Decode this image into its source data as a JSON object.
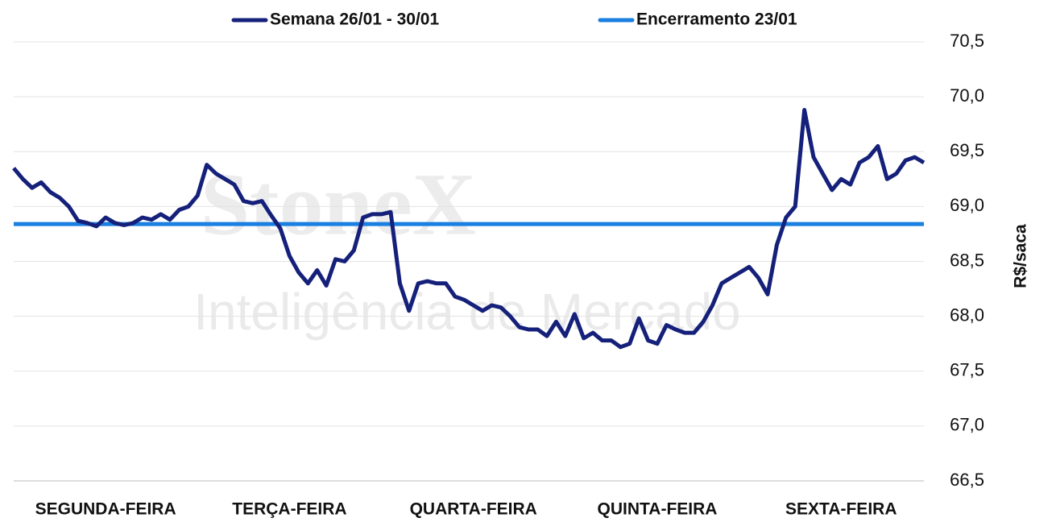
{
  "chart_data": {
    "type": "line",
    "watermark": {
      "brand": "StoneX",
      "tagline": "Inteligência de Mercado"
    },
    "y_label": "R$/saca",
    "categories": [
      null,
      null,
      null,
      null,
      null,
      null,
      null,
      null,
      null,
      null,
      "SEGUNDA-FEIRA",
      null,
      null,
      null,
      null,
      null,
      null,
      null,
      null,
      null,
      null,
      null,
      null,
      null,
      null,
      null,
      null,
      null,
      null,
      null,
      "TERÇA-FEIRA",
      null,
      null,
      null,
      null,
      null,
      null,
      null,
      null,
      null,
      null,
      null,
      null,
      null,
      null,
      null,
      null,
      null,
      null,
      null,
      "QUARTA-FEIRA",
      null,
      null,
      null,
      null,
      null,
      null,
      null,
      null,
      null,
      null,
      null,
      null,
      null,
      null,
      null,
      null,
      null,
      null,
      null,
      "QUINTA-FEIRA",
      null,
      null,
      null,
      null,
      null,
      null,
      null,
      null,
      null,
      null,
      null,
      null,
      null,
      null,
      null,
      null,
      null,
      null,
      null,
      "SEXTA-FEIRA",
      null,
      null,
      null,
      null,
      null,
      null,
      null,
      null,
      null
    ],
    "series": [
      {
        "name": "Semana 26/01 - 30/01",
        "color": "#15207a",
        "values": [
          69.35,
          69.25,
          69.17,
          69.22,
          69.13,
          69.08,
          69.0,
          68.87,
          68.85,
          68.82,
          68.9,
          68.85,
          68.83,
          68.85,
          68.9,
          68.88,
          68.93,
          68.88,
          68.97,
          69.0,
          69.1,
          69.38,
          69.3,
          69.25,
          69.2,
          69.05,
          69.03,
          69.05,
          68.92,
          68.8,
          68.55,
          68.4,
          68.3,
          68.42,
          68.28,
          68.52,
          68.5,
          68.6,
          68.9,
          68.93,
          68.93,
          68.95,
          68.3,
          68.05,
          68.3,
          68.32,
          68.3,
          68.3,
          68.18,
          68.15,
          68.1,
          68.05,
          68.1,
          68.08,
          68.0,
          67.9,
          67.88,
          67.88,
          67.82,
          67.95,
          67.82,
          68.02,
          67.8,
          67.85,
          67.78,
          67.78,
          67.72,
          67.75,
          67.98,
          67.78,
          67.75,
          67.92,
          67.88,
          67.85,
          67.85,
          67.95,
          68.1,
          68.3,
          68.35,
          68.4,
          68.45,
          68.35,
          68.2,
          68.65,
          68.9,
          69.0,
          69.88,
          69.45,
          69.3,
          69.15,
          69.25,
          69.2,
          69.4,
          69.45,
          69.55,
          69.25,
          69.3,
          69.42,
          69.45,
          69.4
        ]
      }
    ],
    "reference_line": {
      "name": "Encerramento 23/01",
      "value": 68.84,
      "color": "#1a7fe0"
    },
    "ylim": [
      66.5,
      70.5
    ],
    "yticks": [
      {
        "value": 66.5,
        "label": "66,5"
      },
      {
        "value": 67.0,
        "label": "67,0"
      },
      {
        "value": 67.5,
        "label": "67,5"
      },
      {
        "value": 68.0,
        "label": "68,0"
      },
      {
        "value": 68.5,
        "label": "68,5"
      },
      {
        "value": 69.0,
        "label": "69,0"
      },
      {
        "value": 69.5,
        "label": "69,5"
      },
      {
        "value": 70.0,
        "label": "70,0"
      },
      {
        "value": 70.5,
        "label": "70,5"
      }
    ],
    "grid": true
  }
}
